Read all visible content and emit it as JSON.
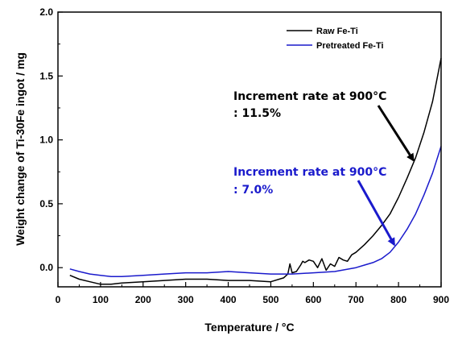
{
  "chart_data": {
    "type": "line",
    "title": "",
    "xlabel": "Temperature / °C",
    "ylabel": "Weight change of Ti-30Fe ingot / mg",
    "xlim": [
      0,
      900
    ],
    "ylim": [
      -0.15,
      2.0
    ],
    "x_ticks": [
      "0",
      "100",
      "200",
      "300",
      "400",
      "500",
      "600",
      "700",
      "800",
      "900"
    ],
    "y_ticks": [
      "0.0",
      "0.5",
      "1.0",
      "1.5",
      "2.0"
    ],
    "grid": false,
    "legend_position": "top-right",
    "series": [
      {
        "name": "Raw Fe-Ti",
        "color": "#000000",
        "x": [
          28,
          50,
          75,
          100,
          125,
          150,
          200,
          250,
          300,
          350,
          400,
          450,
          500,
          530,
          540,
          545,
          550,
          560,
          570,
          575,
          580,
          590,
          600,
          610,
          620,
          630,
          640,
          650,
          660,
          670,
          680,
          690,
          700,
          720,
          740,
          760,
          780,
          800,
          820,
          840,
          860,
          880,
          900
        ],
        "y": [
          -0.06,
          -0.09,
          -0.11,
          -0.13,
          -0.13,
          -0.12,
          -0.11,
          -0.1,
          -0.09,
          -0.09,
          -0.1,
          -0.1,
          -0.11,
          -0.08,
          -0.05,
          0.03,
          -0.04,
          -0.03,
          0.02,
          0.05,
          0.04,
          0.06,
          0.05,
          0.0,
          0.07,
          -0.02,
          0.03,
          0.01,
          0.08,
          0.06,
          0.05,
          0.1,
          0.12,
          0.18,
          0.25,
          0.33,
          0.42,
          0.55,
          0.7,
          0.86,
          1.06,
          1.3,
          1.64
        ]
      },
      {
        "name": "Pretreated Fe-Ti",
        "color": "#1a1acc",
        "x": [
          28,
          50,
          75,
          100,
          125,
          150,
          200,
          250,
          300,
          350,
          400,
          450,
          500,
          550,
          600,
          650,
          700,
          720,
          740,
          760,
          780,
          800,
          820,
          840,
          860,
          880,
          900
        ],
        "y": [
          -0.01,
          -0.03,
          -0.05,
          -0.06,
          -0.07,
          -0.07,
          -0.06,
          -0.05,
          -0.04,
          -0.04,
          -0.03,
          -0.04,
          -0.05,
          -0.05,
          -0.04,
          -0.03,
          0.0,
          0.02,
          0.04,
          0.07,
          0.12,
          0.2,
          0.3,
          0.42,
          0.57,
          0.74,
          0.95
        ]
      }
    ],
    "annotations": [
      {
        "text_line1": "Increment rate at 900°C",
        "text_line2": ": 11.5%",
        "color": "#000000",
        "arrow_to": [
          835,
          0.84
        ]
      },
      {
        "text_line1": "Increment rate at 900°C",
        "text_line2": ": 7.0%",
        "color": "#1a1acc",
        "arrow_to": [
          790,
          0.18
        ]
      }
    ]
  }
}
